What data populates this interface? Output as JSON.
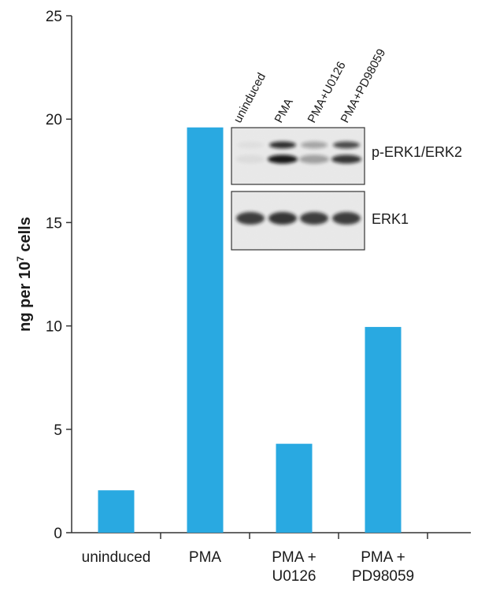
{
  "chart_data": {
    "type": "bar",
    "categories": [
      [
        "uninduced"
      ],
      [
        "PMA"
      ],
      [
        "PMA +",
        "U0126"
      ],
      [
        "PMA +",
        "PD98059"
      ]
    ],
    "values": [
      2.05,
      19.6,
      4.3,
      9.95
    ],
    "ylabel_parts": [
      "ng per 10",
      "7",
      " cells"
    ],
    "yticks": [
      "0",
      "5",
      "10",
      "15",
      "20",
      "25"
    ],
    "ylim": [
      0,
      25
    ],
    "bar_color": "#29a9e1",
    "grid": false
  },
  "blot": {
    "lanes": [
      "uninduced",
      "PMA",
      "PMA+U0126",
      "PMA+PD98059"
    ],
    "panels": [
      {
        "label": "p-ERK1/ERK2",
        "lane_intensity": [
          0.05,
          1.0,
          0.35,
          0.85
        ],
        "double_band": true
      },
      {
        "label": "ERK1",
        "lane_intensity": [
          0.9,
          0.95,
          0.9,
          0.9
        ],
        "double_band": false
      }
    ]
  }
}
